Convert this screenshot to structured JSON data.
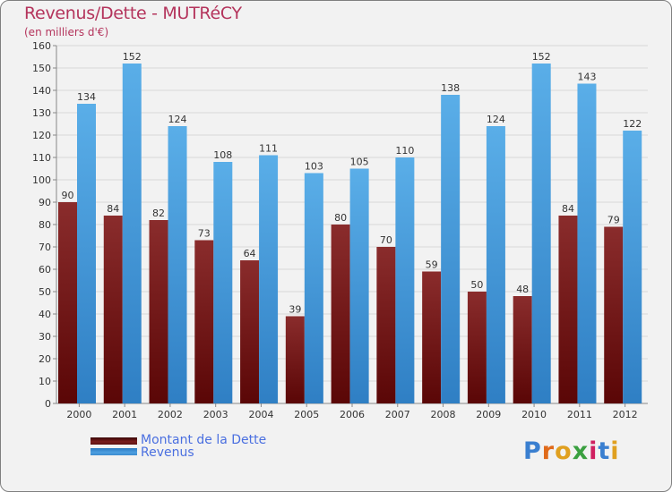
{
  "title": "Revenus/Dette - MUTRéCY",
  "subtitle": "(en milliers d'€)",
  "chart_data": {
    "type": "bar",
    "title": "Revenus/Dette - MUTRéCY",
    "subtitle": "(en milliers d'€)",
    "categories": [
      "2000",
      "2001",
      "2002",
      "2003",
      "2004",
      "2005",
      "2006",
      "2007",
      "2008",
      "2009",
      "2010",
      "2011",
      "2012"
    ],
    "series": [
      {
        "name": "Montant de la Dette",
        "color": "#7a1c1c",
        "values": [
          90,
          84,
          82,
          73,
          64,
          39,
          80,
          70,
          59,
          50,
          48,
          84,
          79
        ]
      },
      {
        "name": "Revenus",
        "color": "#4d9fe0",
        "values": [
          134,
          152,
          124,
          108,
          111,
          103,
          105,
          110,
          138,
          124,
          152,
          143,
          122
        ]
      }
    ],
    "ylim": [
      0,
      160
    ],
    "yticks": [
      0,
      10,
      20,
      30,
      40,
      50,
      60,
      70,
      80,
      90,
      100,
      110,
      120,
      130,
      140,
      150,
      160
    ],
    "grid": true,
    "legend_position": "bottom-left"
  },
  "legend": [
    {
      "label": "Montant de la Dette",
      "color": "#7a1c1c"
    },
    {
      "label": "Revenus",
      "color": "#4d9fe0"
    }
  ],
  "logo": {
    "letters": [
      "P",
      "r",
      "o",
      "x",
      "i",
      "t",
      "i"
    ],
    "colors": [
      "#3a7fd0",
      "#e06a1a",
      "#e0a020",
      "#3aa040",
      "#d02060",
      "#3a7fd0",
      "#e0a020"
    ]
  }
}
